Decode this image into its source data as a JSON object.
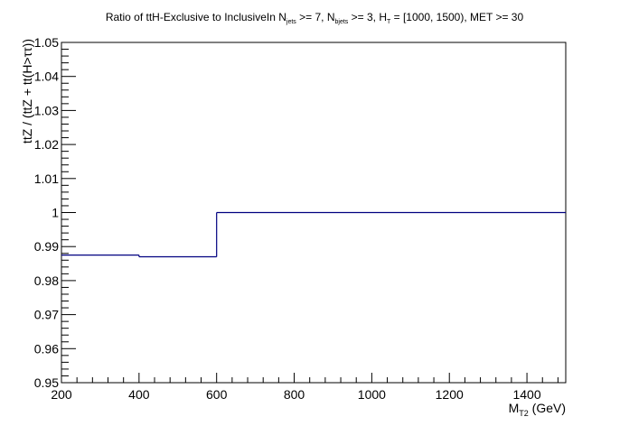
{
  "chart_data": {
    "type": "line",
    "step": true,
    "title": {
      "parts": [
        {
          "text": "Ratio of ttH-Exclusive to InclusiveIn N",
          "sub": false
        },
        {
          "text": "jets",
          "sub": true
        },
        {
          "text": " >= 7, N",
          "sub": false
        },
        {
          "text": "bjets",
          "sub": true
        },
        {
          "text": " >= 3, H",
          "sub": false
        },
        {
          "text": "T",
          "sub": true
        },
        {
          "text": " = [1000, 1500), MET >= 30",
          "sub": false
        }
      ]
    },
    "xlabel": {
      "parts": [
        {
          "text": "M",
          "sub": false
        },
        {
          "text": "T2",
          "sub": true
        },
        {
          "text": " (GeV)",
          "sub": false
        }
      ]
    },
    "ylabel": "ttZ / (ttZ + tt(H>ττ))",
    "xlim": [
      200,
      1500
    ],
    "ylim": [
      0.95,
      1.05
    ],
    "x_ticks": [
      200,
      400,
      600,
      800,
      1000,
      1200,
      1400
    ],
    "x_tick_labels": [
      "200",
      "400",
      "600",
      "800",
      "1000",
      "1200",
      "1400"
    ],
    "y_ticks": [
      0.95,
      0.96,
      0.97,
      0.98,
      0.99,
      1.0,
      1.01,
      1.02,
      1.03,
      1.04,
      1.05
    ],
    "y_tick_labels": [
      "0.95",
      "0.96",
      "0.97",
      "0.98",
      "0.99",
      "1",
      "1.01",
      "1.02",
      "1.03",
      "1.04",
      "1.05"
    ],
    "bin_edges": [
      200,
      400,
      600,
      1500
    ],
    "values": [
      0.9875,
      0.987,
      1.0
    ],
    "line_color": "#000080",
    "grid": false
  }
}
